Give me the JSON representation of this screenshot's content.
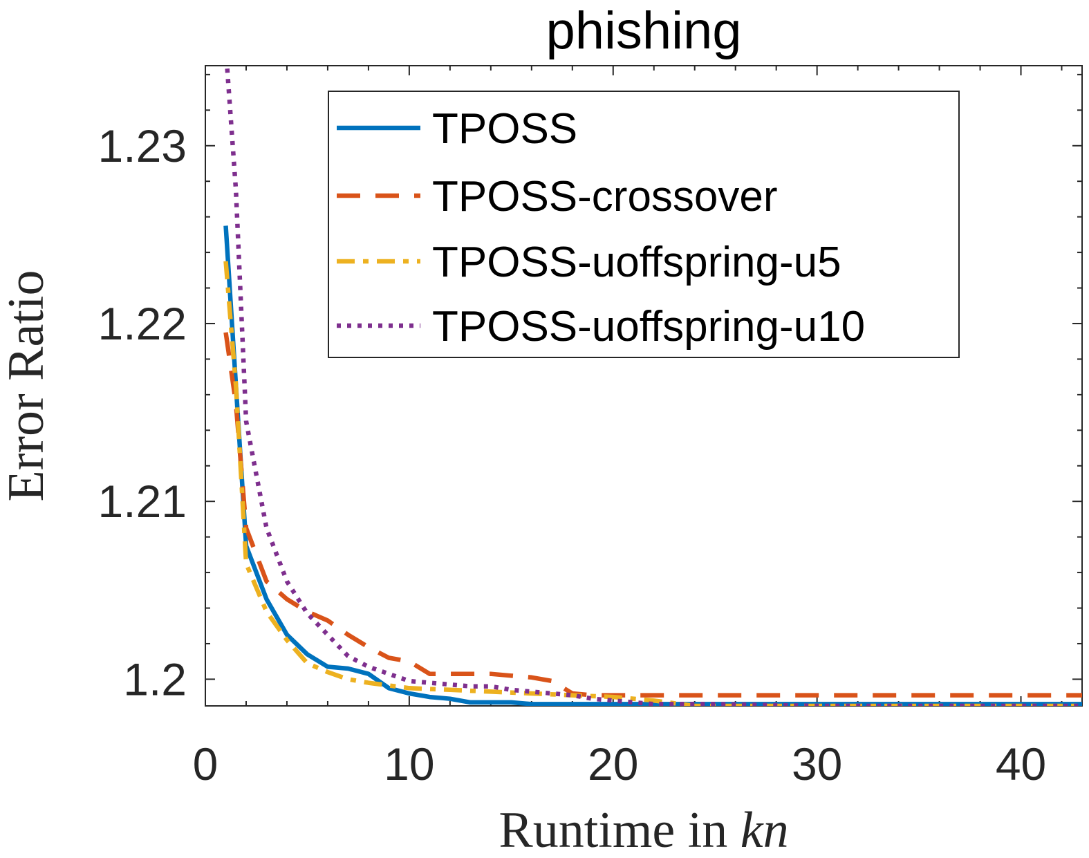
{
  "chart_data": {
    "type": "line",
    "title": "phishing",
    "xlabel_main": "Runtime in ",
    "xlabel_italic": "kn",
    "ylabel": "Error Ratio",
    "xlim": [
      0,
      43
    ],
    "ylim": [
      1.1985,
      1.2345
    ],
    "xticks": [
      0,
      10,
      20,
      30,
      40
    ],
    "yticks": [
      1.2,
      1.21,
      1.22,
      1.23
    ],
    "ytick_labels": [
      "1.2",
      "1.21",
      "1.22",
      "1.23"
    ],
    "grid": false,
    "legend_position": "top-right",
    "series": [
      {
        "name": "TPOSS",
        "color": "#0072BD",
        "dash": "solid",
        "x": [
          1,
          2,
          3,
          4,
          5,
          6,
          7,
          8,
          9,
          10,
          11,
          12,
          13,
          14,
          15,
          16,
          17,
          18,
          19,
          20,
          21,
          22,
          25,
          30,
          35,
          40,
          43
        ],
        "y": [
          1.2255,
          1.2075,
          1.2045,
          1.2025,
          1.2014,
          1.2007,
          1.2006,
          1.2003,
          1.1995,
          1.1992,
          1.199,
          1.1989,
          1.1987,
          1.1987,
          1.1987,
          1.1986,
          1.1986,
          1.1986,
          1.1986,
          1.1986,
          1.1986,
          1.1986,
          1.1986,
          1.1986,
          1.1986,
          1.1986,
          1.1986
        ]
      },
      {
        "name": "TPOSS-crossover",
        "color": "#D95319",
        "dash": "dashed",
        "x": [
          1,
          1.5,
          2,
          3,
          4,
          5,
          6,
          7,
          8,
          9,
          10,
          11,
          12,
          13,
          14,
          15,
          16,
          17,
          18,
          19,
          20,
          22,
          25,
          30,
          35,
          40,
          43
        ],
        "y": [
          1.2195,
          1.2155,
          1.2085,
          1.2055,
          1.2045,
          1.2038,
          1.2033,
          1.2025,
          1.2018,
          1.2012,
          1.201,
          1.2003,
          1.2003,
          1.2003,
          1.2003,
          1.2002,
          1.2001,
          1.1999,
          1.1992,
          1.1991,
          1.1991,
          1.1991,
          1.1991,
          1.1991,
          1.1991,
          1.1991,
          1.1991
        ]
      },
      {
        "name": "TPOSS-uoffspring-u5",
        "color": "#EDB120",
        "dash": "dashdot",
        "x": [
          1,
          1.5,
          2,
          3,
          4,
          5,
          6,
          7,
          8,
          10,
          12,
          14,
          16,
          18,
          20,
          22,
          24,
          26,
          30,
          35,
          40,
          43
        ],
        "y": [
          1.2235,
          1.2165,
          1.2065,
          1.2038,
          1.2022,
          1.2009,
          1.2004,
          1.2,
          1.1998,
          1.1995,
          1.1994,
          1.1993,
          1.1992,
          1.1991,
          1.199,
          1.1988,
          1.1985,
          1.1985,
          1.1985,
          1.1985,
          1.1985,
          1.1985
        ]
      },
      {
        "name": "TPOSS-uoffspring-u10",
        "color": "#7E2F8E",
        "dash": "dotted",
        "x": [
          1,
          1.5,
          2,
          2.5,
          3,
          4,
          5,
          6,
          7,
          8,
          9,
          10,
          11,
          12,
          13,
          14,
          15,
          16,
          17,
          18,
          19,
          20,
          22,
          25,
          30,
          35,
          40,
          43
        ],
        "y": [
          1.2355,
          1.2275,
          1.2145,
          1.2115,
          1.2085,
          1.2055,
          1.2037,
          1.2025,
          1.2013,
          1.2007,
          1.2003,
          1.1999,
          1.1998,
          1.1997,
          1.1996,
          1.1996,
          1.1994,
          1.1993,
          1.1992,
          1.1991,
          1.1989,
          1.1988,
          1.1986,
          1.1986,
          1.1985,
          1.1985,
          1.1985,
          1.1985
        ]
      }
    ]
  }
}
